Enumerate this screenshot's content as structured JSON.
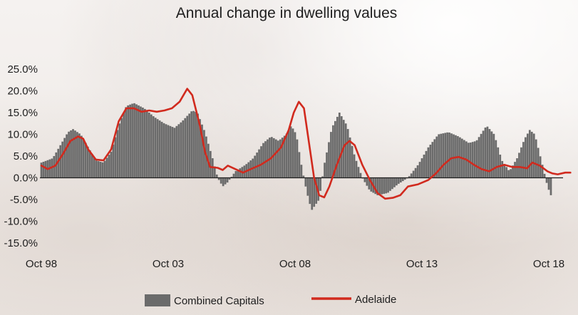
{
  "chart_data": {
    "type": "bar+line",
    "title": "Annual change in dwelling values",
    "xlabel": "",
    "ylabel": "",
    "ylim": [
      -15,
      25
    ],
    "yticks": [
      25,
      20,
      15,
      10,
      5,
      0,
      -5,
      -10,
      -15
    ],
    "ytick_labels": [
      "25.0%",
      "20.0%",
      "15.0%",
      "10.0%",
      "5.0%",
      "0.0%",
      "-5.0%",
      "-10.0%",
      "-15.0%"
    ],
    "x_start": 1998.75,
    "x_end": 2018.75,
    "xtick_labels": [
      "Oct 98",
      "Oct 03",
      "Oct 08",
      "Oct 13",
      "Oct 18"
    ],
    "xtick_positions": [
      1998.75,
      2003.75,
      2008.75,
      2013.75,
      2018.75
    ],
    "grid": false,
    "legend_position": "bottom",
    "series": [
      {
        "name": "Combined Capitals",
        "type": "bar",
        "color": "#6b6b6b",
        "keypoints": [
          [
            1998.75,
            3.5
          ],
          [
            1999.2,
            4.5
          ],
          [
            1999.5,
            7.5
          ],
          [
            1999.8,
            10.5
          ],
          [
            2000.0,
            11.2
          ],
          [
            2000.3,
            10.0
          ],
          [
            2000.6,
            7.0
          ],
          [
            2000.9,
            4.0
          ],
          [
            2001.2,
            3.5
          ],
          [
            2001.5,
            6.0
          ],
          [
            2001.8,
            12.0
          ],
          [
            2002.1,
            16.5
          ],
          [
            2002.4,
            17.2
          ],
          [
            2002.8,
            16.0
          ],
          [
            2003.2,
            14.0
          ],
          [
            2003.6,
            12.5
          ],
          [
            2004.0,
            11.5
          ],
          [
            2004.3,
            13.0
          ],
          [
            2004.7,
            15.5
          ],
          [
            2004.9,
            15.0
          ],
          [
            2005.2,
            10.5
          ],
          [
            2005.5,
            4.5
          ],
          [
            2005.7,
            0.0
          ],
          [
            2005.9,
            -2.0
          ],
          [
            2006.1,
            -1.0
          ],
          [
            2006.4,
            1.5
          ],
          [
            2006.8,
            3.0
          ],
          [
            2007.1,
            4.5
          ],
          [
            2007.5,
            8.0
          ],
          [
            2007.8,
            9.5
          ],
          [
            2008.1,
            8.5
          ],
          [
            2008.4,
            10.0
          ],
          [
            2008.6,
            12.0
          ],
          [
            2008.8,
            10.0
          ],
          [
            2009.0,
            3.0
          ],
          [
            2009.2,
            -3.0
          ],
          [
            2009.4,
            -7.5
          ],
          [
            2009.7,
            -5.0
          ],
          [
            2009.9,
            3.0
          ],
          [
            2010.2,
            11.5
          ],
          [
            2010.5,
            15.0
          ],
          [
            2010.8,
            12.0
          ],
          [
            2011.1,
            5.0
          ],
          [
            2011.4,
            0.0
          ],
          [
            2011.7,
            -3.0
          ],
          [
            2012.0,
            -4.0
          ],
          [
            2012.4,
            -3.5
          ],
          [
            2012.8,
            -1.5
          ],
          [
            2013.2,
            0.0
          ],
          [
            2013.6,
            3.0
          ],
          [
            2014.0,
            7.0
          ],
          [
            2014.4,
            10.0
          ],
          [
            2014.8,
            10.5
          ],
          [
            2015.2,
            9.5
          ],
          [
            2015.6,
            8.0
          ],
          [
            2015.9,
            8.5
          ],
          [
            2016.3,
            12.0
          ],
          [
            2016.6,
            10.0
          ],
          [
            2016.9,
            4.0
          ],
          [
            2017.2,
            1.5
          ],
          [
            2017.5,
            4.5
          ],
          [
            2017.8,
            9.0
          ],
          [
            2018.0,
            11.0
          ],
          [
            2018.2,
            10.0
          ],
          [
            2018.5,
            3.0
          ],
          [
            2018.7,
            -2.0
          ],
          [
            2018.9,
            -5.0
          ]
        ]
      },
      {
        "name": "Adelaide",
        "type": "line",
        "color": "#d12a1e",
        "keypoints": [
          [
            1998.75,
            2.8
          ],
          [
            1999.0,
            2.0
          ],
          [
            1999.3,
            2.8
          ],
          [
            1999.6,
            5.5
          ],
          [
            1999.9,
            8.5
          ],
          [
            2000.2,
            9.5
          ],
          [
            2000.4,
            9.0
          ],
          [
            2000.6,
            6.5
          ],
          [
            2000.9,
            4.2
          ],
          [
            2001.2,
            4.0
          ],
          [
            2001.5,
            6.5
          ],
          [
            2001.8,
            13.0
          ],
          [
            2002.1,
            16.0
          ],
          [
            2002.4,
            16.0
          ],
          [
            2002.7,
            15.2
          ],
          [
            2003.0,
            15.5
          ],
          [
            2003.3,
            15.2
          ],
          [
            2003.6,
            15.5
          ],
          [
            2003.9,
            16.0
          ],
          [
            2004.2,
            17.5
          ],
          [
            2004.5,
            20.5
          ],
          [
            2004.7,
            19.0
          ],
          [
            2005.0,
            12.0
          ],
          [
            2005.2,
            6.0
          ],
          [
            2005.4,
            2.5
          ],
          [
            2005.7,
            2.3
          ],
          [
            2005.9,
            1.8
          ],
          [
            2006.1,
            2.8
          ],
          [
            2006.4,
            2.0
          ],
          [
            2006.7,
            1.2
          ],
          [
            2007.0,
            2.0
          ],
          [
            2007.4,
            3.0
          ],
          [
            2007.8,
            4.5
          ],
          [
            2008.2,
            7.0
          ],
          [
            2008.5,
            11.0
          ],
          [
            2008.7,
            15.0
          ],
          [
            2008.9,
            17.5
          ],
          [
            2009.1,
            16.0
          ],
          [
            2009.3,
            8.0
          ],
          [
            2009.5,
            0.0
          ],
          [
            2009.7,
            -4.0
          ],
          [
            2009.9,
            -4.5
          ],
          [
            2010.1,
            -2.0
          ],
          [
            2010.4,
            3.0
          ],
          [
            2010.7,
            7.5
          ],
          [
            2010.9,
            8.5
          ],
          [
            2011.1,
            7.5
          ],
          [
            2011.4,
            3.0
          ],
          [
            2011.7,
            -0.5
          ],
          [
            2012.0,
            -3.5
          ],
          [
            2012.3,
            -4.8
          ],
          [
            2012.6,
            -4.6
          ],
          [
            2012.9,
            -4.0
          ],
          [
            2013.2,
            -2.0
          ],
          [
            2013.6,
            -1.5
          ],
          [
            2014.0,
            -0.5
          ],
          [
            2014.3,
            1.0
          ],
          [
            2014.6,
            3.0
          ],
          [
            2014.9,
            4.5
          ],
          [
            2015.2,
            4.8
          ],
          [
            2015.5,
            4.2
          ],
          [
            2015.8,
            3.0
          ],
          [
            2016.1,
            2.0
          ],
          [
            2016.4,
            1.5
          ],
          [
            2016.7,
            2.5
          ],
          [
            2017.0,
            3.0
          ],
          [
            2017.3,
            2.5
          ],
          [
            2017.6,
            2.5
          ],
          [
            2017.9,
            2.2
          ],
          [
            2018.1,
            3.5
          ],
          [
            2018.4,
            2.8
          ],
          [
            2018.7,
            1.5
          ],
          [
            2018.9,
            1.0
          ],
          [
            2019.1,
            0.8
          ],
          [
            2019.4,
            1.2
          ],
          [
            2019.6,
            1.2
          ]
        ]
      }
    ]
  }
}
